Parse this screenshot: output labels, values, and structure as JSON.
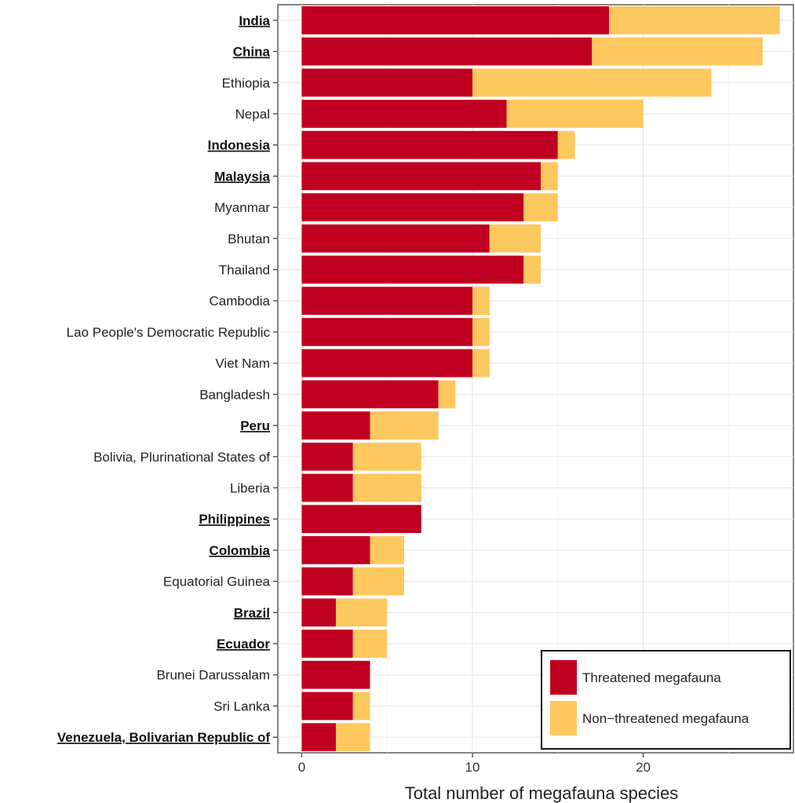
{
  "chart_data": {
    "type": "bar",
    "orientation": "horizontal",
    "stacked": true,
    "xlabel": "Total number of megafauna species",
    "ylabel": "",
    "xlim": [
      -1.4,
      28.8
    ],
    "x_ticks": [
      0,
      10,
      20
    ],
    "grid": true,
    "legend_position": "bottom-right",
    "categories": [
      "India",
      "China",
      "Ethiopia",
      "Nepal",
      "Indonesia",
      "Malaysia",
      "Myanmar",
      "Bhutan",
      "Thailand",
      "Cambodia",
      "Lao People's Democratic Republic",
      "Viet Nam",
      "Bangladesh",
      "Peru",
      "Bolivia, Plurinational States of",
      "Liberia",
      "Philippines",
      "Colombia",
      "Equatorial Guinea",
      "Brazil",
      "Ecuador",
      "Brunei Darussalam",
      "Sri Lanka",
      "Venezuela, Bolivarian Republic of"
    ],
    "highlighted": [
      "India",
      "China",
      "Indonesia",
      "Malaysia",
      "Peru",
      "Philippines",
      "Colombia",
      "Brazil",
      "Ecuador",
      "Venezuela, Bolivarian Republic of"
    ],
    "series": [
      {
        "name": "Threatened megafauna",
        "color": "#c00021",
        "values": [
          18,
          17,
          10,
          12,
          15,
          14,
          13,
          11,
          13,
          10,
          10,
          10,
          8,
          4,
          3,
          3,
          7,
          4,
          3,
          2,
          3,
          4,
          3,
          2
        ]
      },
      {
        "name": "Non−threatened megafauna",
        "color": "#fdc85e",
        "values": [
          10,
          10,
          14,
          8,
          1,
          1,
          2,
          3,
          1,
          1,
          1,
          1,
          1,
          4,
          4,
          4,
          0,
          2,
          3,
          3,
          2,
          0,
          1,
          2
        ]
      }
    ]
  }
}
